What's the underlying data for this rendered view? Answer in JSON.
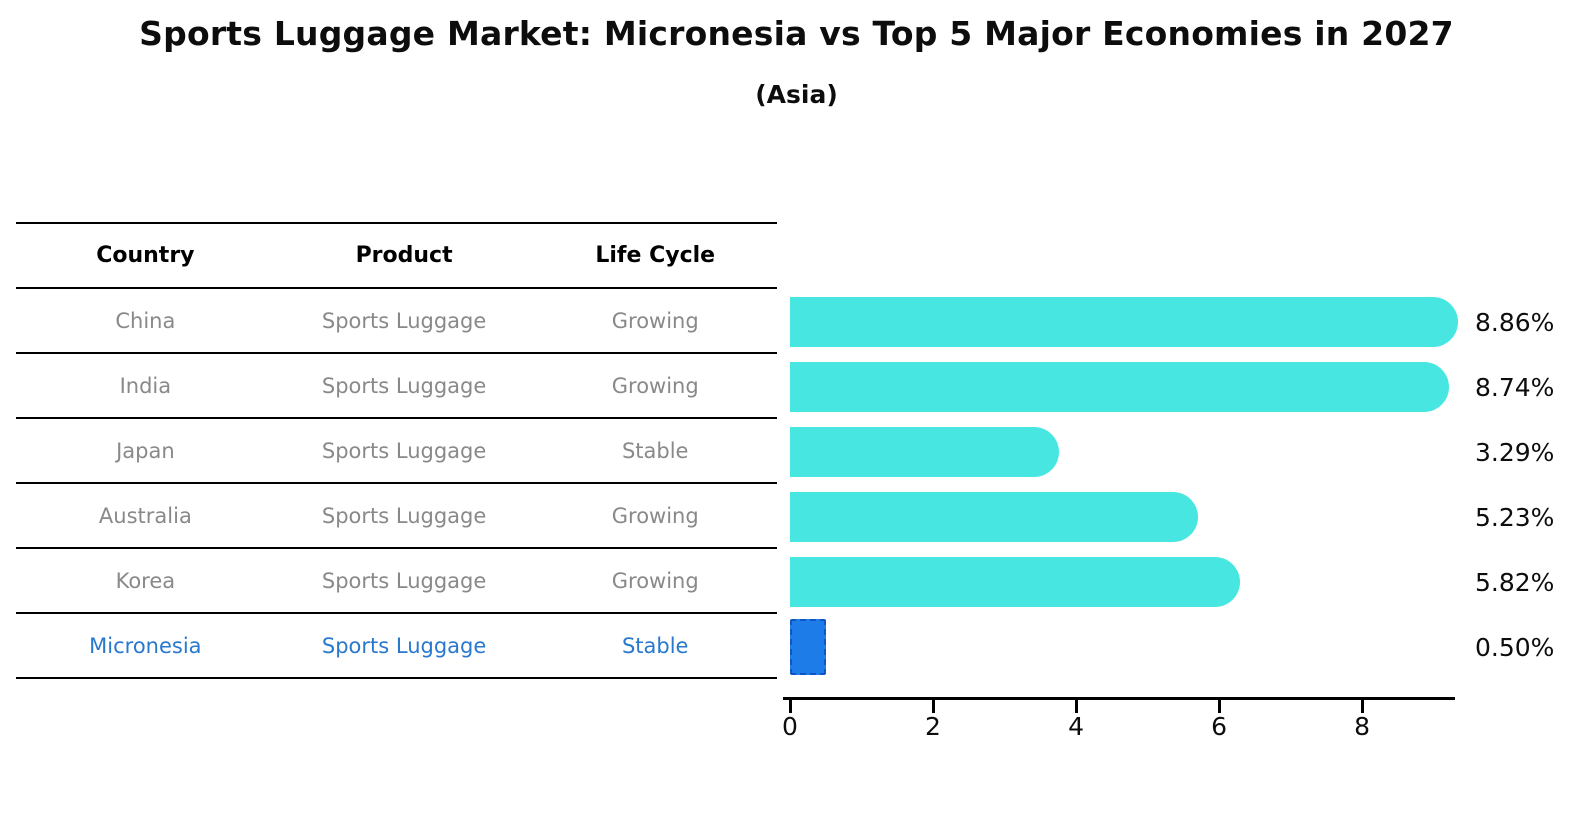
{
  "header": {
    "title": "Sports Luggage Market: Micronesia vs Top 5 Major Economies in 2027",
    "subtitle": "(Asia)"
  },
  "table": {
    "columns": [
      "Country",
      "Product",
      "Life Cycle"
    ],
    "rows": [
      {
        "country": "China",
        "product": "Sports Luggage",
        "life_cycle": "Growing",
        "highlight": false
      },
      {
        "country": "India",
        "product": "Sports Luggage",
        "life_cycle": "Growing",
        "highlight": false
      },
      {
        "country": "Japan",
        "product": "Sports Luggage",
        "life_cycle": "Stable",
        "highlight": false
      },
      {
        "country": "Australia",
        "product": "Sports Luggage",
        "life_cycle": "Growing",
        "highlight": false
      },
      {
        "country": "Korea",
        "product": "Sports Luggage",
        "life_cycle": "Growing",
        "highlight": false
      },
      {
        "country": "Micronesia",
        "product": "Sports Luggage",
        "life_cycle": "Stable",
        "highlight": true
      }
    ]
  },
  "chart_data": {
    "type": "bar",
    "orientation": "horizontal",
    "title": "Sports Luggage Market: Micronesia vs Top 5 Major Economies in 2027",
    "subtitle": "(Asia)",
    "categories": [
      "China",
      "India",
      "Japan",
      "Australia",
      "Korea",
      "Micronesia"
    ],
    "values": [
      8.86,
      8.74,
      3.29,
      5.23,
      5.82,
      0.5
    ],
    "value_labels": [
      "8.86%",
      "8.74%",
      "3.29%",
      "5.23%",
      "5.82%",
      "0.50%"
    ],
    "xticks": [
      0,
      2,
      4,
      6,
      8
    ],
    "xtick_labels": [
      "0",
      "2",
      "4",
      "6",
      "8"
    ],
    "xlim": [
      0,
      9.3
    ],
    "grid": false,
    "legend": "none",
    "bar_color": "#48e6e0",
    "highlight_color": "#1e7ce8",
    "highlight_border_color": "#0f55c4",
    "highlight_index": 5
  },
  "colors": {
    "background": "#ffffff",
    "table_text_gray": "#898989",
    "table_highlight_blue": "#2878ce",
    "axis_black": "#000000"
  }
}
